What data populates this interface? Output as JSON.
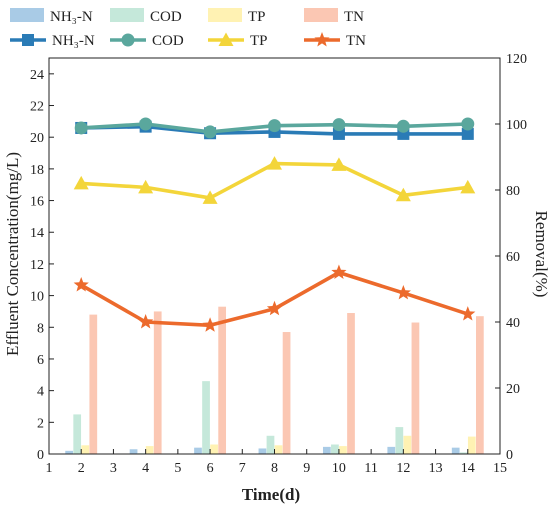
{
  "chart_data": {
    "type": "bar",
    "xlabel": "Time(d)",
    "ylabel_left": "Effluent Concentration(mg/L)",
    "ylabel_right": "Removal(%)",
    "xlim": [
      1,
      15
    ],
    "x_ticks": [
      1,
      2,
      3,
      4,
      5,
      6,
      7,
      8,
      9,
      10,
      11,
      12,
      13,
      14,
      15
    ],
    "ylim_left": [
      0,
      25
    ],
    "y_ticks_left": [
      0,
      2,
      4,
      6,
      8,
      10,
      12,
      14,
      16,
      18,
      20,
      22,
      24
    ],
    "ylim_right": [
      0,
      120
    ],
    "y_ticks_right": [
      0,
      20,
      40,
      60,
      80,
      100,
      120
    ],
    "grid": false,
    "legend_position": "top",
    "bar_days": [
      2,
      4,
      6,
      8,
      10,
      12,
      14
    ],
    "bar_series": [
      {
        "name": "NH₃-N",
        "color": "#a9cbe6",
        "values": [
          0.2,
          0.3,
          0.4,
          0.35,
          0.45,
          0.45,
          0.4
        ]
      },
      {
        "name": "COD",
        "color": "#c5e8da",
        "values": [
          2.5,
          0.05,
          4.6,
          1.15,
          0.6,
          1.7,
          0.1
        ]
      },
      {
        "name": "TP",
        "color": "#fff2b3",
        "values": [
          0.55,
          0.5,
          0.6,
          0.55,
          0.5,
          1.15,
          1.1
        ]
      },
      {
        "name": "TN",
        "color": "#fbc7b3",
        "values": [
          8.8,
          9.0,
          9.3,
          7.7,
          8.9,
          8.3,
          8.7
        ]
      }
    ],
    "line_series": [
      {
        "name": "NH₃-N",
        "color": "#2a7bb6",
        "marker": "square",
        "x": [
          2,
          4,
          6,
          8,
          10,
          12,
          14
        ],
        "values": [
          98.8,
          99.2,
          97.2,
          97.6,
          97.0,
          97.0,
          97.0
        ]
      },
      {
        "name": "COD",
        "color": "#5aa79d",
        "marker": "circle",
        "x": [
          2,
          4,
          6,
          8,
          10,
          12,
          14
        ],
        "values": [
          98.8,
          100.0,
          97.6,
          99.5,
          99.8,
          99.3,
          100.0
        ]
      },
      {
        "name": "TP",
        "color": "#f3d53a",
        "marker": "triangle",
        "x": [
          2,
          4,
          6,
          8,
          10,
          12,
          14
        ],
        "values": [
          82.0,
          80.8,
          77.6,
          88.0,
          87.6,
          78.4,
          80.8
        ]
      },
      {
        "name": "TN",
        "color": "#ec6a2c",
        "marker": "star",
        "x": [
          2,
          4,
          6,
          8,
          10,
          12,
          14
        ],
        "values": [
          51.2,
          40.0,
          39.0,
          44.0,
          55.0,
          48.8,
          42.4
        ]
      }
    ]
  }
}
